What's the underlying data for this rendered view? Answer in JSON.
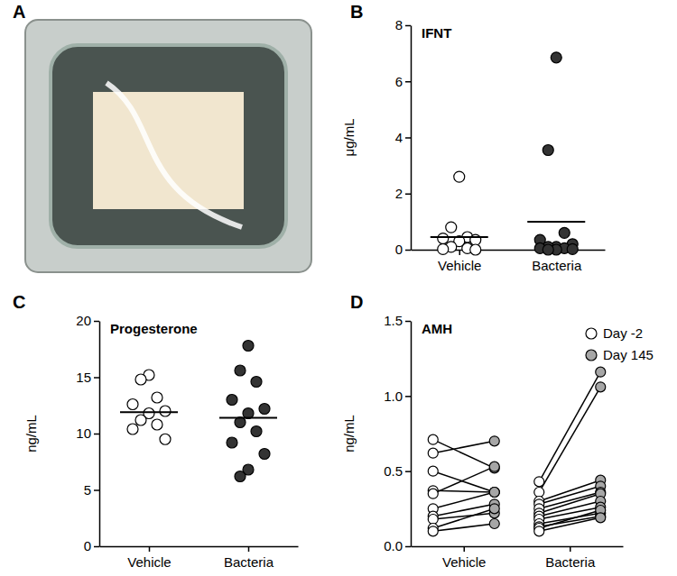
{
  "chart_data": [
    {
      "type": "image",
      "annotations": [
        "A"
      ]
    },
    {
      "type": "scatter",
      "annotations": [
        "B"
      ],
      "title": "IFNT",
      "y_label": "μg/mL",
      "categories": [
        "Vehicle",
        "Bacteria"
      ],
      "values": [
        [
          2.6,
          0.8,
          0.45,
          0.4,
          0.35,
          0.3,
          0.1,
          0.05,
          0.02,
          0.0
        ],
        [
          6.85,
          3.55,
          0.6,
          0.35,
          0.2,
          0.1,
          0.1,
          0.05,
          0.05,
          0.02,
          0.0,
          0.0
        ]
      ],
      "means": [
        0.45,
        1.0
      ],
      "colors": [
        "#ffffff",
        "#333333"
      ],
      "ylim": [
        0,
        8
      ],
      "yticks": [
        0,
        2,
        4,
        6,
        8
      ]
    },
    {
      "type": "scatter",
      "annotations": [
        "C"
      ],
      "title": "Progesterone",
      "y_label": "ng/mL",
      "categories": [
        "Vehicle",
        "Bacteria"
      ],
      "values": [
        [
          15.2,
          14.8,
          13.2,
          12.6,
          12.0,
          11.8,
          11.2,
          10.8,
          10.4,
          9.5
        ],
        [
          17.8,
          15.6,
          14.6,
          13.0,
          12.2,
          11.8,
          11.0,
          10.2,
          9.2,
          8.2,
          6.8,
          6.2
        ]
      ],
      "means": [
        11.9,
        11.4
      ],
      "colors": [
        "#ffffff",
        "#333333"
      ],
      "ylim": [
        0,
        20
      ],
      "yticks": [
        0,
        5,
        10,
        15,
        20
      ]
    },
    {
      "type": "line",
      "annotations": [
        "D"
      ],
      "title": "AMH",
      "y_label": "ng/mL",
      "categories": [
        "Vehicle",
        "Bacteria"
      ],
      "marker": "circle",
      "legend": "right",
      "series": [
        {
          "name": "Day -2",
          "color": "#ffffff",
          "values": [
            [
              0.71,
              0.62,
              0.5,
              0.37,
              0.35,
              0.25,
              0.2,
              0.18,
              0.12,
              0.1
            ],
            [
              0.43,
              0.36,
              0.3,
              0.28,
              0.25,
              0.22,
              0.2,
              0.18,
              0.15,
              0.13,
              0.12,
              0.1
            ]
          ]
        },
        {
          "name": "Day 145",
          "color": "#a6a6a6",
          "values": [
            [
              0.52,
              0.7,
              0.36,
              0.36,
              0.53,
              0.36,
              0.28,
              0.22,
              0.25,
              0.15
            ],
            [
              1.16,
              1.06,
              0.44,
              0.4,
              0.36,
              0.35,
              0.3,
              0.26,
              0.22,
              0.2,
              0.24,
              0.19
            ]
          ]
        }
      ],
      "ylim": [
        0,
        1.5
      ],
      "yticks": [
        {
          "value": 0,
          "label": "0.0"
        },
        0.5,
        {
          "value": 1,
          "label": "1.0"
        },
        1.5
      ]
    }
  ]
}
